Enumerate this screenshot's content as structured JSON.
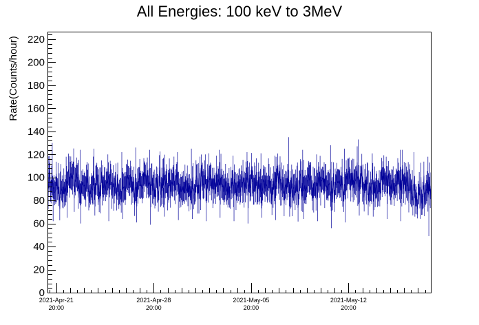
{
  "chart_data": {
    "type": "line",
    "title": "All Energies:  100 keV to 3MeV",
    "xlabel": "",
    "ylabel": "Rate(Counts/hour)",
    "ylim": [
      0,
      226
    ],
    "xlim": [
      "2021-04-21 06:00",
      "2021-05-18 18:00"
    ],
    "grid": false,
    "legend": "none",
    "colors": {
      "series": "#000099",
      "axis": "#000000",
      "background": "#ffffff"
    },
    "yticks": [
      "0",
      "20",
      "40",
      "60",
      "80",
      "100",
      "120",
      "140",
      "160",
      "180",
      "200",
      "220"
    ],
    "xticks": [
      {
        "date": "2021-Apr-21",
        "time": "20:00"
      },
      {
        "date": "2021-Apr-28",
        "time": "20:00"
      },
      {
        "date": "2021-May-05",
        "time": "20:00"
      },
      {
        "date": "2021-May-12",
        "time": "20:00"
      }
    ],
    "series": [
      {
        "x_unit": "day",
        "x": [
          "2021-04-21",
          "2021-04-22",
          "2021-04-23",
          "2021-04-24",
          "2021-04-25",
          "2021-04-26",
          "2021-04-27",
          "2021-04-28",
          "2021-04-29",
          "2021-04-30",
          "2021-05-01",
          "2021-05-02",
          "2021-05-03",
          "2021-05-04",
          "2021-05-05",
          "2021-05-06",
          "2021-05-07",
          "2021-05-08",
          "2021-05-09",
          "2021-05-10",
          "2021-05-11",
          "2021-05-12",
          "2021-05-13",
          "2021-05-14",
          "2021-05-15",
          "2021-05-16",
          "2021-05-17",
          "2021-05-18"
        ],
        "mean": [
          95,
          93,
          96,
          92,
          95,
          94,
          92,
          94,
          93,
          95,
          92,
          94,
          96,
          93,
          94,
          95,
          93,
          94,
          92,
          95,
          97,
          93,
          95,
          94,
          93,
          96,
          94,
          88
        ],
        "min": [
          62,
          65,
          60,
          67,
          62,
          64,
          61,
          59,
          66,
          63,
          64,
          62,
          65,
          62,
          60,
          65,
          63,
          66,
          64,
          62,
          56,
          61,
          67,
          66,
          64,
          62,
          66,
          49
        ],
        "max": [
          130,
          118,
          124,
          125,
          120,
          122,
          126,
          124,
          117,
          122,
          125,
          120,
          124,
          119,
          122,
          121,
          119,
          135,
          124,
          120,
          128,
          125,
          133,
          120,
          118,
          124,
          122,
          118
        ]
      }
    ]
  }
}
